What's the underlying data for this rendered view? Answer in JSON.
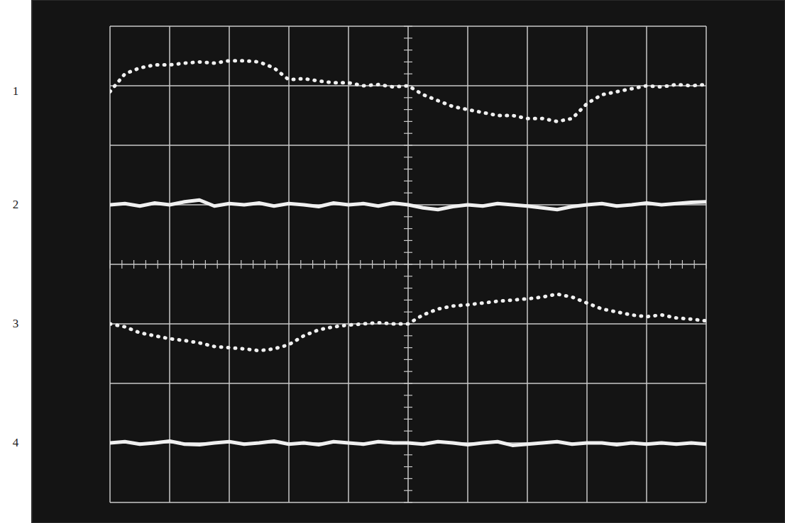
{
  "chart_data": {
    "type": "line",
    "x": [
      0,
      0.25,
      0.5,
      0.75,
      1,
      1.25,
      1.5,
      1.75,
      2,
      2.25,
      2.5,
      2.75,
      3,
      3.25,
      3.5,
      3.75,
      4,
      4.25,
      4.5,
      4.75,
      5,
      5.25,
      5.5,
      5.75,
      6,
      6.25,
      6.5,
      6.75,
      7,
      7.25,
      7.5,
      7.75,
      8,
      8.25,
      8.5,
      8.75,
      9,
      9.25,
      9.5,
      9.75,
      10
    ],
    "series": [
      {
        "name": "1",
        "color": "#f0f0f0",
        "line_style": "dotted",
        "values": [
          6.9,
          7.2,
          7.3,
          7.35,
          7.35,
          7.38,
          7.4,
          7.38,
          7.42,
          7.42,
          7.4,
          7.3,
          7.1,
          7.12,
          7.08,
          7.05,
          7.05,
          7.0,
          7.02,
          6.98,
          7.0,
          6.85,
          6.75,
          6.65,
          6.6,
          6.55,
          6.5,
          6.5,
          6.45,
          6.45,
          6.4,
          6.45,
          6.7,
          6.85,
          6.9,
          6.95,
          7.0,
          6.98,
          7.02,
          7.0,
          7.02
        ]
      },
      {
        "name": "2",
        "color": "#f0f0f0",
        "line_style": "solid",
        "values": [
          5.0,
          5.02,
          4.98,
          5.03,
          5.0,
          5.05,
          5.08,
          4.98,
          5.02,
          5.0,
          5.03,
          4.98,
          5.02,
          5.0,
          4.97,
          5.03,
          5.0,
          5.02,
          4.98,
          5.03,
          5.0,
          4.95,
          4.92,
          4.97,
          5.0,
          4.98,
          5.02,
          5.0,
          4.98,
          4.95,
          4.92,
          4.97,
          5.0,
          5.02,
          4.98,
          5.0,
          5.03,
          5.0,
          5.02,
          5.04,
          5.05
        ]
      },
      {
        "name": "3",
        "color": "#f0f0f0",
        "line_style": "dotted",
        "values": [
          3.0,
          2.95,
          2.85,
          2.8,
          2.75,
          2.72,
          2.68,
          2.62,
          2.6,
          2.58,
          2.55,
          2.58,
          2.65,
          2.8,
          2.9,
          2.95,
          2.98,
          3.0,
          3.02,
          3.0,
          3.0,
          3.15,
          3.25,
          3.3,
          3.32,
          3.35,
          3.38,
          3.4,
          3.42,
          3.45,
          3.5,
          3.45,
          3.35,
          3.25,
          3.2,
          3.15,
          3.12,
          3.15,
          3.1,
          3.08,
          3.05
        ]
      },
      {
        "name": "4",
        "color": "#f0f0f0",
        "line_style": "solid",
        "values": [
          1.0,
          1.02,
          0.98,
          1.0,
          1.03,
          0.98,
          0.97,
          1.0,
          1.02,
          0.98,
          1.0,
          1.03,
          0.98,
          1.0,
          0.97,
          1.02,
          1.0,
          0.98,
          1.02,
          1.0,
          1.0,
          0.98,
          1.02,
          1.0,
          0.97,
          1.0,
          1.02,
          0.96,
          0.98,
          1.0,
          1.02,
          0.98,
          1.0,
          1.0,
          0.97,
          1.0,
          0.98,
          1.0,
          0.98,
          1.0,
          0.98
        ]
      }
    ],
    "xlim": [
      0,
      10
    ],
    "xticks": [
      0,
      1,
      2,
      3,
      4,
      5,
      6,
      7,
      8,
      9,
      10
    ],
    "ylim": [
      0,
      8
    ],
    "yticks": [
      0,
      1,
      2,
      3,
      4,
      5,
      6,
      7,
      8
    ],
    "grid": true,
    "tick_labels": false,
    "legend": "left"
  }
}
